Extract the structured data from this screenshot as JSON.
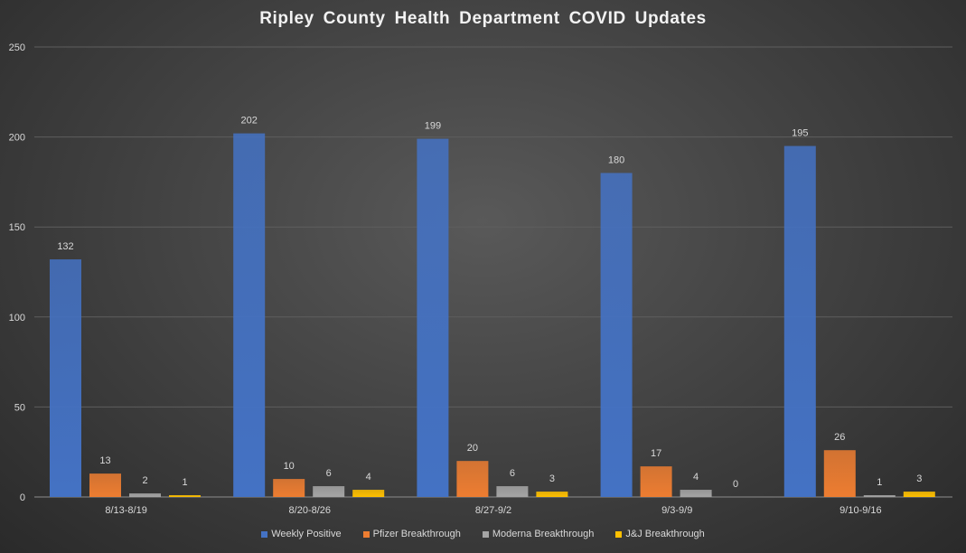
{
  "chart_data": {
    "type": "bar",
    "title": "Ripley County Health Department  COVID Updates",
    "categories": [
      "8/13-8/19",
      "8/20-8/26",
      "8/27-9/2",
      "9/3-9/9",
      "9/10-9/16"
    ],
    "series": [
      {
        "name": "Weekly Positive",
        "color": "#4472c4",
        "values": [
          132,
          202,
          199,
          180,
          195
        ]
      },
      {
        "name": "Pfizer Breakthrough",
        "color": "#ed7d31",
        "values": [
          13,
          10,
          20,
          17,
          26
        ]
      },
      {
        "name": "Moderna Breakthrough",
        "color": "#a5a5a5",
        "values": [
          2,
          6,
          6,
          4,
          1
        ]
      },
      {
        "name": "J&J Breakthrough",
        "color": "#ffc000",
        "values": [
          1,
          4,
          3,
          0,
          3
        ]
      }
    ],
    "ylim": [
      0,
      250
    ],
    "yticks": [
      0,
      50,
      100,
      150,
      200,
      250
    ],
    "grid": true,
    "data_labels": true,
    "legend_position": "bottom"
  }
}
